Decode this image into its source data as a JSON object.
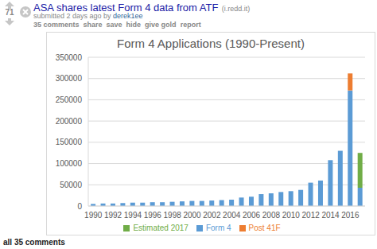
{
  "post": {
    "score": "71",
    "title": "ASA shares latest Form 4 data from ATF",
    "domain": "(i.redd.it)",
    "submitted": "submitted 2 days ago by",
    "author": "derek1ee",
    "actions": [
      "35 comments",
      "share",
      "save",
      "hide",
      "give gold",
      "report"
    ],
    "footer": "all 35 comments"
  },
  "chart_data": {
    "type": "bar",
    "title": "Form 4 Applications (1990-Present)",
    "stacked": true,
    "grid": true,
    "legend": "bottom",
    "categories": [
      "1990",
      null,
      "1992",
      null,
      "1994",
      null,
      "1996",
      null,
      "1998",
      null,
      "2000",
      null,
      "2002",
      null,
      "2004",
      null,
      "2006",
      null,
      "2008",
      null,
      "2010",
      null,
      "2012",
      null,
      "2014",
      null,
      "2016",
      null
    ],
    "series": [
      {
        "name": "Form 4",
        "color": "#5b9bd5",
        "values": [
          5000,
          6000,
          6000,
          7000,
          8000,
          8000,
          9000,
          9000,
          10000,
          11000,
          12000,
          12000,
          13000,
          14000,
          15000,
          20000,
          22000,
          28000,
          30000,
          33000,
          35000,
          38000,
          55000,
          60000,
          108000,
          130000,
          272000,
          43000
        ]
      },
      {
        "name": "Post 41F",
        "color": "#ed7d31",
        "values": [
          null,
          null,
          null,
          null,
          null,
          null,
          null,
          null,
          null,
          null,
          null,
          null,
          null,
          null,
          null,
          null,
          null,
          null,
          null,
          null,
          null,
          null,
          null,
          null,
          null,
          null,
          40000,
          null
        ]
      },
      {
        "name": "Estimated 2017",
        "color": "#70ad47",
        "values": [
          null,
          null,
          null,
          null,
          null,
          null,
          null,
          null,
          null,
          null,
          null,
          null,
          null,
          null,
          null,
          null,
          null,
          null,
          null,
          null,
          null,
          null,
          null,
          null,
          null,
          null,
          null,
          82000
        ]
      }
    ],
    "ylim": [
      0,
      350000
    ],
    "yticks": [
      0,
      50000,
      100000,
      150000,
      200000,
      250000,
      300000,
      350000
    ]
  }
}
